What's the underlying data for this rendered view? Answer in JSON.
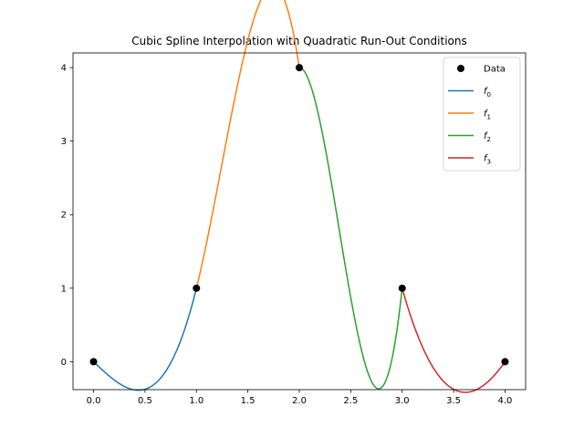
{
  "chart_data": {
    "type": "line",
    "title": "Cubic Spline Interpolation with Quadratic Run-Out Conditions",
    "xlabel": "",
    "ylabel": "",
    "xlim": [
      -0.2,
      4.2
    ],
    "ylim": [
      -0.38,
      4.2
    ],
    "xticks": [
      0.0,
      0.5,
      1.0,
      1.5,
      2.0,
      2.5,
      3.0,
      3.5,
      4.0
    ],
    "xtick_labels": [
      "0.0",
      "0.5",
      "1.0",
      "1.5",
      "2.0",
      "2.5",
      "3.0",
      "3.5",
      "4.0"
    ],
    "yticks": [
      0,
      1,
      2,
      3,
      4
    ],
    "ytick_labels": [
      "0",
      "1",
      "2",
      "3",
      "4"
    ],
    "grid": false,
    "legend_position": "top-right",
    "points": {
      "name": "Data",
      "color": "#000000",
      "x": [
        0,
        1,
        2,
        3,
        4
      ],
      "y": [
        0,
        1,
        4,
        1,
        0
      ]
    },
    "series": [
      {
        "label_base": "f",
        "label_sub": "0",
        "color": "#1f77b4",
        "x_range": [
          0,
          1
        ],
        "coeffs": [
          0,
          -1.3333,
          0,
          2.3333
        ]
      },
      {
        "label_base": "f",
        "label_sub": "1",
        "color": "#ff7f0e",
        "x_range": [
          1,
          2
        ],
        "coeffs": [
          1,
          5.6667,
          7,
          -9.6667
        ]
      },
      {
        "label_base": "f",
        "label_sub": "2",
        "color": "#2ca02c",
        "x_range": [
          2,
          3
        ],
        "coeffs": [
          4,
          0,
          -22,
          19
        ]
      },
      {
        "label_base": "f",
        "label_sub": "3",
        "color": "#d62728",
        "x_range": [
          3,
          4
        ],
        "coeffs": [
          1,
          -5,
          5,
          -1
        ]
      }
    ]
  }
}
